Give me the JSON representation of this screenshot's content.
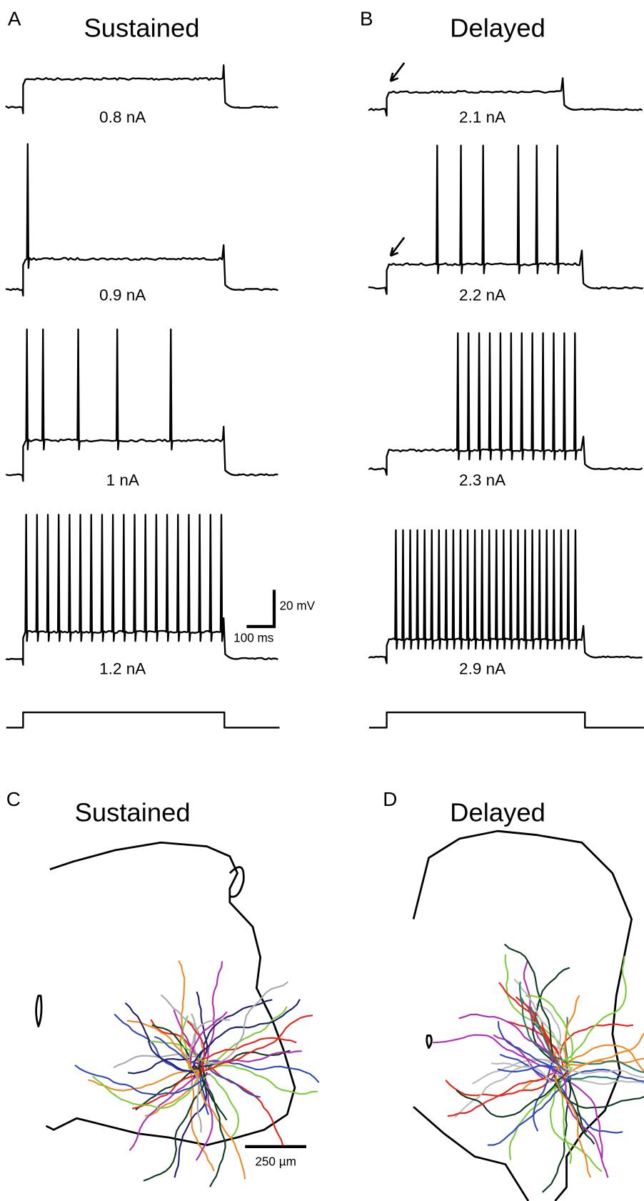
{
  "panels": [
    {
      "letter": "A",
      "title": "Sustained",
      "traces": [
        "0.8 nA",
        "0.9 nA",
        "1 nA",
        "1.2 nA"
      ]
    },
    {
      "letter": "B",
      "title": "Delayed",
      "traces": [
        "2.1 nA",
        "2.2 nA",
        "2.3 nA",
        "2.9 nA"
      ]
    },
    {
      "letter": "C",
      "title": "Sustained"
    },
    {
      "letter": "D",
      "title": "Delayed"
    }
  ],
  "scale_bars": {
    "voltage": "20 mV",
    "time": "100 ms",
    "length": "250 µm"
  }
}
